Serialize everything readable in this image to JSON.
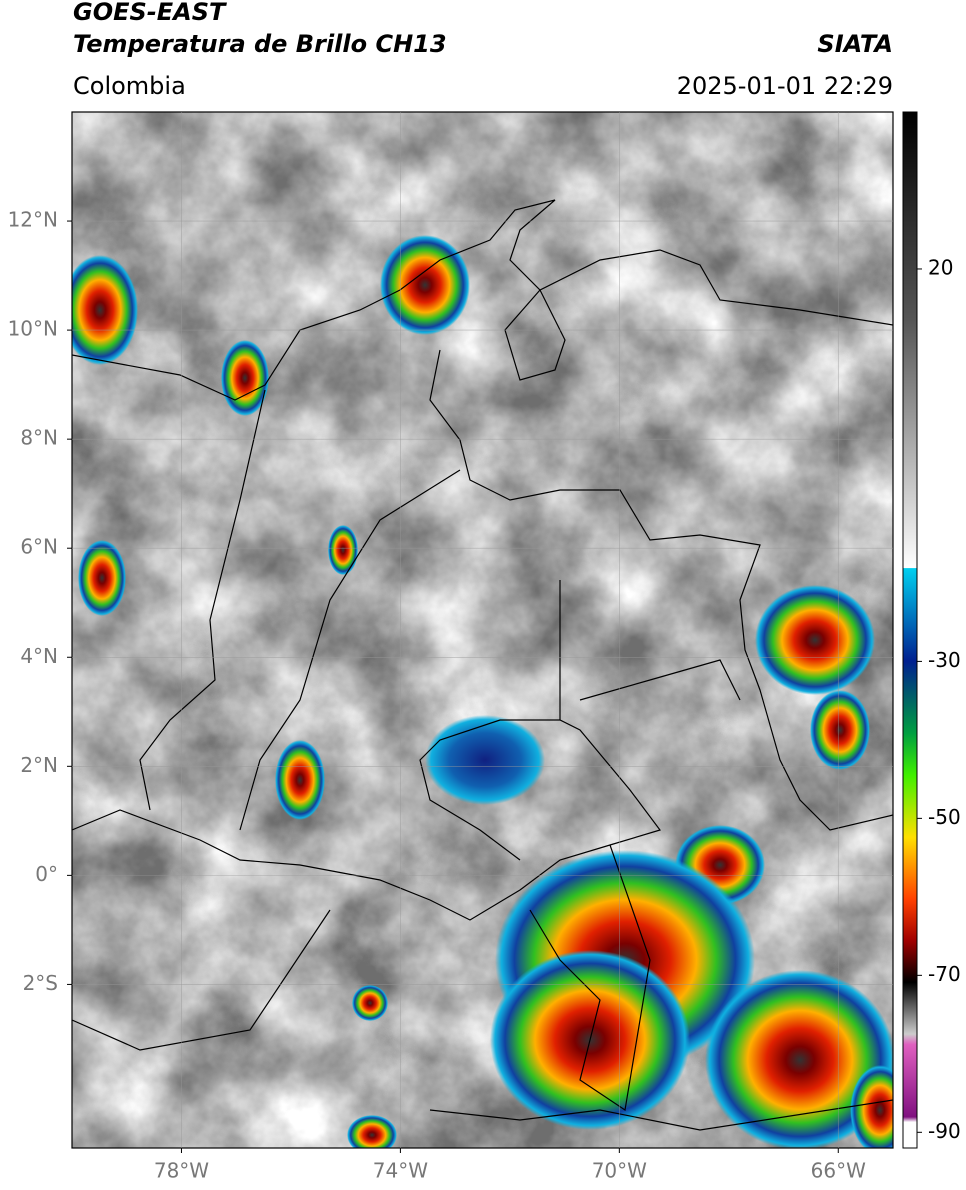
{
  "header": {
    "satellite": "GOES-EAST",
    "product": "Temperatura de Brillo CH13",
    "source": "SIATA",
    "region": "Colombia",
    "timestamp": "2025-01-01 22:29"
  },
  "map": {
    "xlim": [
      -80,
      -65
    ],
    "ylim": [
      -5,
      14
    ],
    "xticks": [
      {
        "value": -78,
        "label": "78°W"
      },
      {
        "value": -74,
        "label": "74°W"
      },
      {
        "value": -70,
        "label": "70°W"
      },
      {
        "value": -66,
        "label": "66°W"
      }
    ],
    "yticks": [
      {
        "value": 12,
        "label": "12°N"
      },
      {
        "value": 10,
        "label": "10°N"
      },
      {
        "value": 8,
        "label": "8°N"
      },
      {
        "value": 6,
        "label": "6°N"
      },
      {
        "value": 4,
        "label": "4°N"
      },
      {
        "value": 2,
        "label": "2°N"
      },
      {
        "value": 0,
        "label": "0°"
      },
      {
        "value": -2,
        "label": "2°S"
      }
    ]
  },
  "colorbar": {
    "lim": [
      -92,
      40
    ],
    "ticks": [
      20,
      -30,
      -50,
      -70,
      -90
    ]
  }
}
